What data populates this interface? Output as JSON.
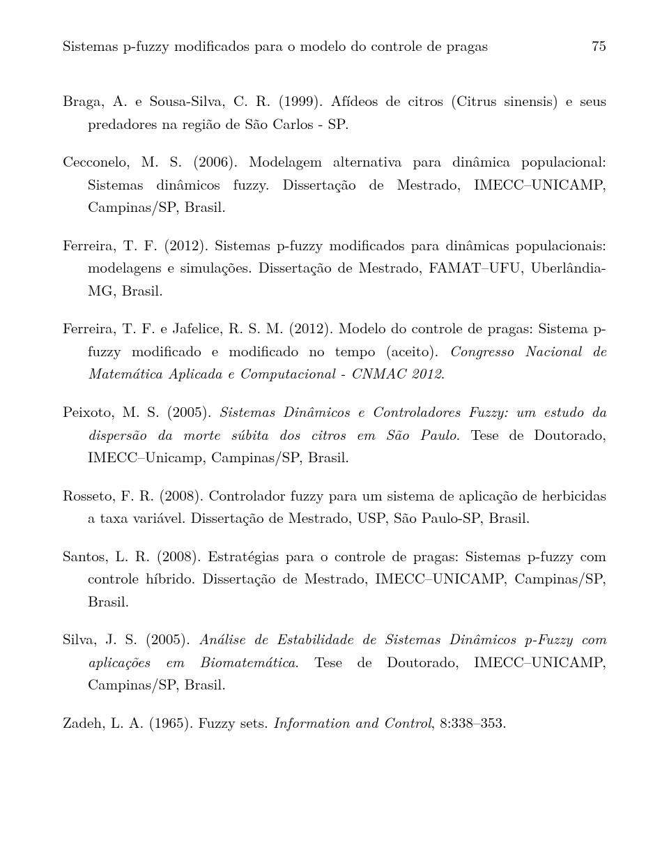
{
  "header": {
    "title": "Sistemas p-fuzzy modificados para o modelo do controle de pragas",
    "page_number": "75"
  },
  "references": [
    {
      "pre": "Braga, A. e Sousa-Silva, C. R. (1999). Afídeos de citros (Citrus sinensis) e seus predadores na região de São Carlos - SP."
    },
    {
      "pre": "Cecconelo, M. S. (2006). Modelagem alternativa para dinâmica populacional: Sistemas dinâmicos fuzzy. Dissertação de Mestrado, IMECC–UNICAMP, Campinas/SP, Brasil."
    },
    {
      "pre": "Ferreira, T. F. (2012). Sistemas p-fuzzy modificados para dinâmicas populacionais: modelagens e simulações. Dissertação de Mestrado, FAMAT–UFU, Uberlândia-MG, Brasil."
    },
    {
      "pre": "Ferreira, T. F. e Jafelice, R. S. M. (2012). Modelo do controle de pragas: Sistema p-fuzzy modificado e modificado no tempo (aceito). ",
      "it1": "Congresso Nacional de Matemática Aplicada e Computacional - CNMAC 2012",
      "post": "."
    },
    {
      "pre": "Peixoto, M. S. (2005). ",
      "it1": "Sistemas Dinâmicos e Controladores Fuzzy: um estudo da dispersão da morte súbita dos citros em São Paulo",
      "post": ". Tese de Doutorado, IMECC–Unicamp, Campinas/SP, Brasil."
    },
    {
      "pre": "Rosseto, F. R. (2008). Controlador fuzzy para um sistema de aplicação de herbicidas a taxa variável. Dissertação de Mestrado, USP, São Paulo-SP, Brasil."
    },
    {
      "pre": "Santos, L. R. (2008). Estratégias para o controle de pragas: Sistemas p-fuzzy com controle híbrido. Dissertação de Mestrado, IMECC–UNICAMP, Campinas/SP, Brasil."
    },
    {
      "pre": "Silva, J. S. (2005). ",
      "it1": "Análise de Estabilidade de Sistemas Dinâmicos p-Fuzzy com aplicações em Biomatemática",
      "post": ". Tese de Doutorado, IMECC–UNICAMP, Campinas/SP, Brasil."
    },
    {
      "pre": "Zadeh, L. A. (1965). Fuzzy sets. ",
      "it1": "Information and Control",
      "post": ", 8:338–353."
    }
  ]
}
